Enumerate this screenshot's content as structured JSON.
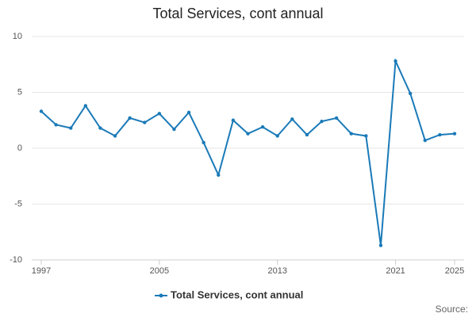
{
  "chart_data": {
    "type": "line",
    "title": "Total Services, cont annual",
    "x": [
      1997,
      1998,
      1999,
      2000,
      2001,
      2002,
      2003,
      2004,
      2005,
      2006,
      2007,
      2008,
      2009,
      2010,
      2011,
      2012,
      2013,
      2014,
      2015,
      2016,
      2017,
      2018,
      2019,
      2020,
      2021,
      2022,
      2023,
      2024,
      2025
    ],
    "series": [
      {
        "name": "Total Services, cont annual",
        "color": "#1a7ab8",
        "values": [
          3.3,
          2.1,
          1.8,
          3.8,
          1.8,
          1.1,
          2.7,
          2.3,
          3.1,
          1.7,
          3.2,
          0.5,
          -2.4,
          2.5,
          1.3,
          1.9,
          1.1,
          2.6,
          1.2,
          2.4,
          2.7,
          1.3,
          1.1,
          -8.7,
          7.8,
          4.9,
          0.7,
          1.2,
          1.3
        ]
      }
    ],
    "xlim": [
      1997,
      2025
    ],
    "xticks": [
      1997,
      2005,
      2013,
      2021,
      2025
    ],
    "ylim": [
      -10,
      10
    ],
    "yticks": [
      -10,
      -5,
      0,
      5,
      10
    ],
    "grid": true,
    "legend": "bottom",
    "source": "Source:"
  }
}
